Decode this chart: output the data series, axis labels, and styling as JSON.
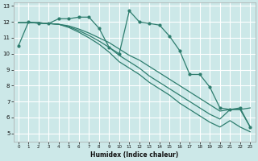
{
  "xlabel": "Humidex (Indice chaleur)",
  "xlim": [
    -0.5,
    23.5
  ],
  "ylim": [
    4.5,
    13.2
  ],
  "yticks": [
    5,
    6,
    7,
    8,
    9,
    10,
    11,
    12,
    13
  ],
  "xticks": [
    0,
    1,
    2,
    3,
    4,
    5,
    6,
    7,
    8,
    9,
    10,
    11,
    12,
    13,
    14,
    15,
    16,
    17,
    18,
    19,
    20,
    21,
    22,
    23
  ],
  "bg_color": "#cce8e8",
  "grid_color": "#ffffff",
  "line_color": "#2e7d6e",
  "line1": [
    10.5,
    12.0,
    11.9,
    11.9,
    12.2,
    12.2,
    12.3,
    12.3,
    11.6,
    10.4,
    10.0,
    12.7,
    12.0,
    11.9,
    11.8,
    11.1,
    10.2,
    8.7,
    8.7,
    7.9,
    6.6,
    6.5,
    6.6,
    5.4
  ],
  "line2": [
    11.95,
    11.95,
    11.95,
    11.9,
    11.85,
    11.75,
    11.55,
    11.3,
    11.0,
    10.7,
    10.3,
    9.9,
    9.6,
    9.2,
    8.8,
    8.4,
    8.0,
    7.6,
    7.2,
    6.8,
    6.4,
    6.5,
    6.5,
    6.6
  ],
  "line3": [
    11.95,
    11.95,
    11.95,
    11.9,
    11.85,
    11.7,
    11.45,
    11.15,
    10.8,
    10.4,
    9.9,
    9.5,
    9.1,
    8.6,
    8.2,
    7.8,
    7.4,
    7.0,
    6.6,
    6.2,
    5.9,
    6.5,
    6.5,
    5.4
  ],
  "line4": [
    11.95,
    11.95,
    11.95,
    11.9,
    11.85,
    11.65,
    11.35,
    11.0,
    10.6,
    10.1,
    9.5,
    9.1,
    8.7,
    8.2,
    7.8,
    7.4,
    6.9,
    6.5,
    6.1,
    5.7,
    5.4,
    5.8,
    5.4,
    5.1
  ]
}
